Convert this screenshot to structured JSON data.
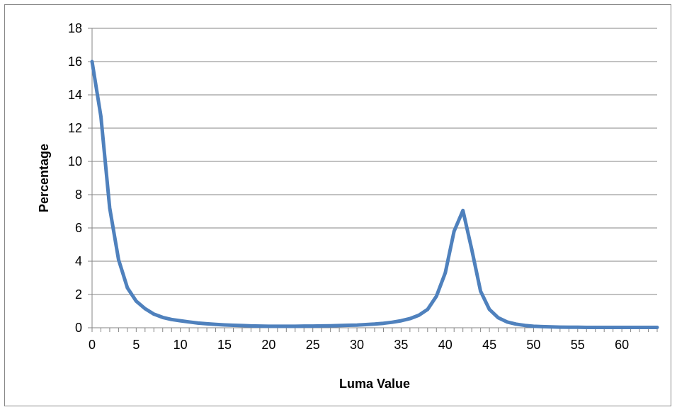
{
  "chart_data": {
    "type": "line",
    "title": "",
    "xlabel": "Luma Value",
    "ylabel": "Percentage",
    "xlim": [
      0,
      64
    ],
    "ylim": [
      0,
      18
    ],
    "x_ticks": [
      0,
      5,
      10,
      15,
      20,
      25,
      30,
      35,
      40,
      45,
      50,
      55,
      60
    ],
    "y_ticks": [
      0,
      2,
      4,
      6,
      8,
      10,
      12,
      14,
      16,
      18
    ],
    "grid": "horizontal",
    "legend": "none",
    "series": [
      {
        "color": "#4f81bd",
        "x": [
          0,
          1,
          2,
          3,
          4,
          5,
          6,
          7,
          8,
          9,
          10,
          11,
          12,
          13,
          14,
          15,
          16,
          17,
          18,
          19,
          20,
          21,
          22,
          23,
          24,
          25,
          26,
          27,
          28,
          29,
          30,
          31,
          32,
          33,
          34,
          35,
          36,
          37,
          38,
          39,
          40,
          41,
          42,
          43,
          44,
          45,
          46,
          47,
          48,
          49,
          50,
          51,
          52,
          53,
          54,
          55,
          56,
          57,
          58,
          59,
          60,
          61,
          62,
          63,
          64
        ],
        "y": [
          16.0,
          12.7,
          7.2,
          4.1,
          2.4,
          1.6,
          1.15,
          0.82,
          0.62,
          0.5,
          0.42,
          0.35,
          0.28,
          0.24,
          0.2,
          0.17,
          0.15,
          0.13,
          0.11,
          0.1,
          0.09,
          0.09,
          0.09,
          0.09,
          0.1,
          0.1,
          0.11,
          0.12,
          0.13,
          0.15,
          0.16,
          0.19,
          0.22,
          0.27,
          0.33,
          0.42,
          0.55,
          0.75,
          1.1,
          1.9,
          3.3,
          5.8,
          7.05,
          4.7,
          2.2,
          1.1,
          0.6,
          0.35,
          0.22,
          0.14,
          0.09,
          0.07,
          0.05,
          0.04,
          0.03,
          0.03,
          0.02,
          0.02,
          0.02,
          0.02,
          0.02,
          0.02,
          0.02,
          0.02,
          0.02
        ]
      }
    ]
  }
}
